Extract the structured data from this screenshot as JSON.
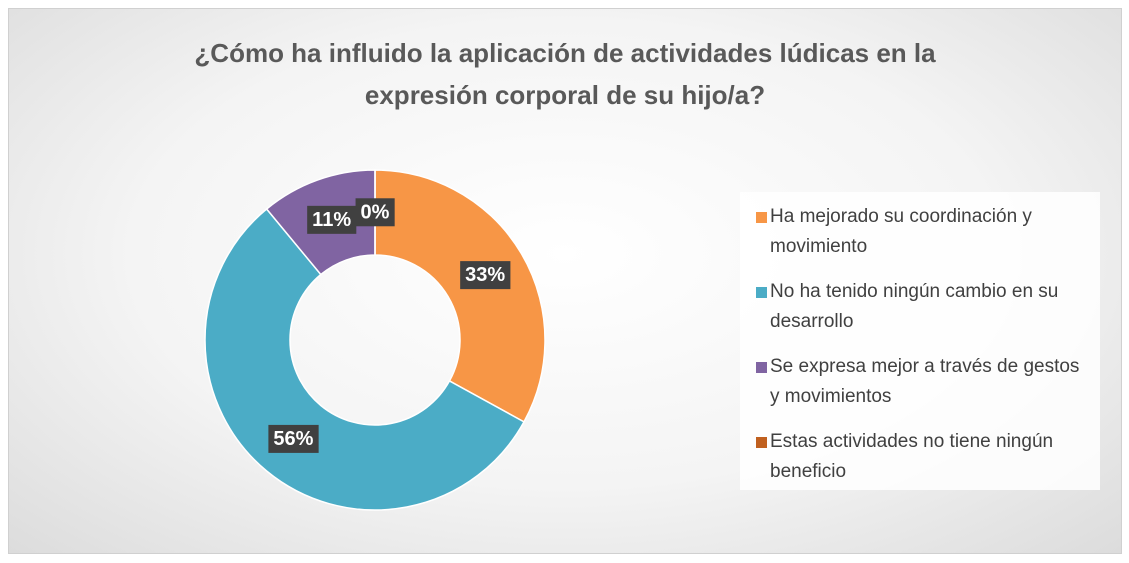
{
  "chart_data": {
    "type": "donut",
    "title": "¿Cómo ha influido la aplicación de actividades lúdicas en la expresión corporal de su hijo/a?",
    "categories": [
      "Ha mejorado su coordinación y movimiento",
      "No ha tenido ningún cambio en su desarrollo",
      "Se expresa mejor a través de gestos y movimientos",
      "Estas actividades no tiene ningún beneficio"
    ],
    "values": [
      33,
      56,
      11,
      0
    ],
    "value_labels": [
      "33%",
      "56%",
      "11%",
      "0%"
    ],
    "colors": [
      "#f79646",
      "#4bacc6",
      "#8064a2",
      "#c0601f"
    ],
    "legend": "right"
  }
}
